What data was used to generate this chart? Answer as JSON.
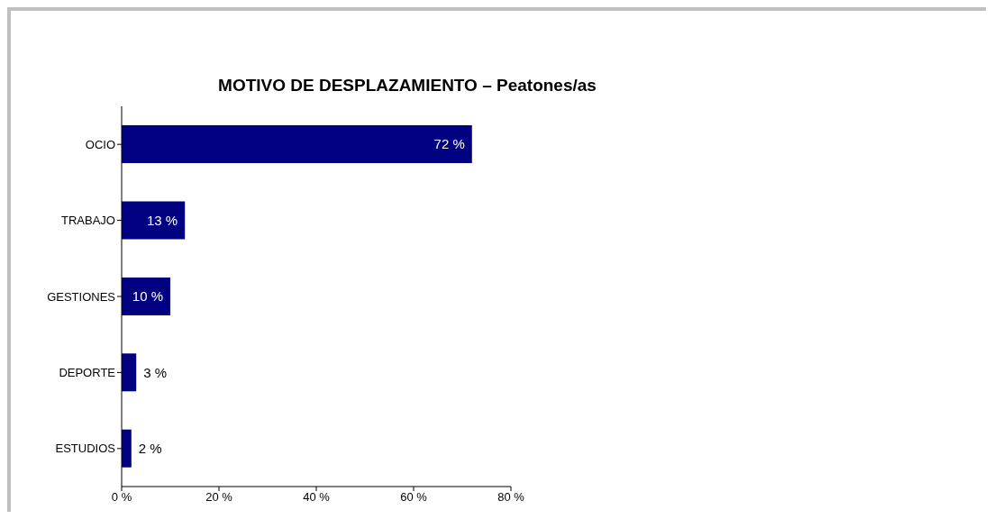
{
  "chart_data": {
    "type": "bar",
    "orientation": "horizontal",
    "title": "MOTIVO DE DESPLAZAMIENTO – Peatones/as",
    "categories": [
      "OCIO",
      "TRABAJO",
      "GESTIONES",
      "DEPORTE",
      "ESTUDIOS"
    ],
    "values": [
      72,
      13,
      10,
      3,
      2
    ],
    "value_labels": [
      "72 %",
      "13 %",
      "10 %",
      "3 %",
      "2 %"
    ],
    "color": "#000080",
    "xlim": [
      0,
      80
    ],
    "xticks": [
      {
        "value": 0,
        "label": "0 %"
      },
      {
        "value": 20,
        "label": "20 %"
      },
      {
        "value": 40,
        "label": "40 %"
      },
      {
        "value": 60,
        "label": "60 %"
      },
      {
        "value": 80,
        "label": "80 %"
      }
    ],
    "grid": false,
    "legend": false
  }
}
